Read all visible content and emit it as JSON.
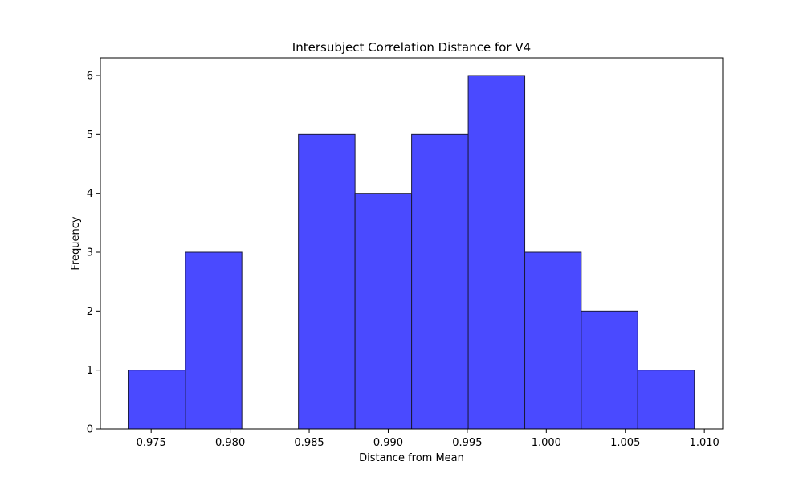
{
  "chart_data": {
    "type": "bar",
    "title": "Intersubject Correlation Distance for V4",
    "xlabel": "Distance from Mean",
    "ylabel": "Frequency",
    "bin_edges": [
      0.97359,
      0.97717,
      0.98074,
      0.98432,
      0.9879,
      0.99148,
      0.99506,
      0.99864,
      1.00221,
      1.00579,
      1.00937
    ],
    "values": [
      1,
      3,
      0,
      5,
      4,
      5,
      6,
      3,
      2,
      1
    ],
    "xlim": [
      0.97179,
      1.01116
    ],
    "ylim": [
      0,
      6.3
    ],
    "xticks": [
      0.975,
      0.98,
      0.985,
      0.99,
      0.995,
      1.0,
      1.005,
      1.01
    ],
    "xtick_labels": [
      "0.975",
      "0.980",
      "0.985",
      "0.990",
      "0.995",
      "1.000",
      "1.005",
      "1.010"
    ],
    "yticks": [
      0,
      1,
      2,
      3,
      4,
      5,
      6
    ],
    "ytick_labels": [
      "0",
      "1",
      "2",
      "3",
      "4",
      "5",
      "6"
    ],
    "bar_color": "#4a4aff",
    "edge_color": "#1a1a3a",
    "grid": false
  }
}
